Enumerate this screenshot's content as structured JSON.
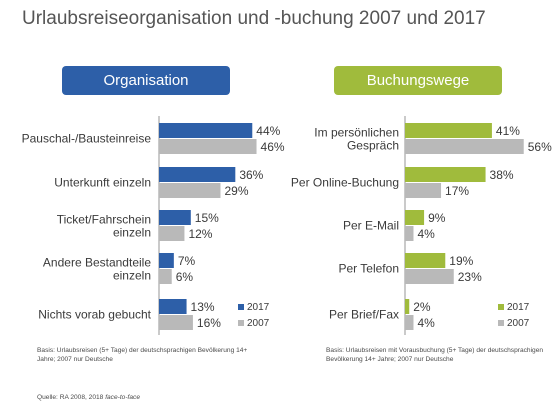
{
  "title": "Urlaubsreiseorganisation und -buchung 2007 und 2017",
  "colors": {
    "series2017_left": "#2d5fa8",
    "series2017_right": "#a0bb3c",
    "series2007": "#b9b9b9"
  },
  "chart_data": [
    {
      "type": "bar",
      "orientation": "horizontal",
      "title": "Organisation",
      "categories": [
        "Pauschal-/Bausteinreise",
        "Unterkunft einzeln",
        "Ticket/Fahrschein einzeln",
        "Andere Bestandteile einzeln",
        "Nichts vorab gebucht"
      ],
      "series": [
        {
          "name": "2017",
          "values": [
            44,
            36,
            15,
            7,
            13
          ]
        },
        {
          "name": "2007",
          "values": [
            46,
            29,
            12,
            6,
            16
          ]
        }
      ],
      "value_suffix": "%",
      "legend_position": "bottom-right",
      "grid": false
    },
    {
      "type": "bar",
      "orientation": "horizontal",
      "title": "Buchungswege",
      "categories": [
        "Im persönlichen Gespräch",
        "Per Online-Buchung",
        "Per E-Mail",
        "Per Telefon",
        "Per Brief/Fax"
      ],
      "series": [
        {
          "name": "2017",
          "values": [
            41,
            38,
            9,
            19,
            2
          ]
        },
        {
          "name": "2007",
          "values": [
            56,
            17,
            4,
            23,
            4
          ]
        }
      ],
      "value_suffix": "%",
      "legend_position": "bottom-right",
      "grid": false
    }
  ],
  "notes": {
    "left": "Basis: Urlaubsreisen (5+ Tage) der deutschsprachigen Bevölkerung 14+ Jahre; 2007 nur Deutsche",
    "right": "Basis: Urlaubsreisen mit Vorausbuchung (5+ Tage) der deutschsprachigen Bevölkerung 14+ Jahre; 2007 nur Deutsche",
    "source_prefix": "Quelle: RA 2008, 2018 ",
    "source_italic": "face-to-face"
  }
}
